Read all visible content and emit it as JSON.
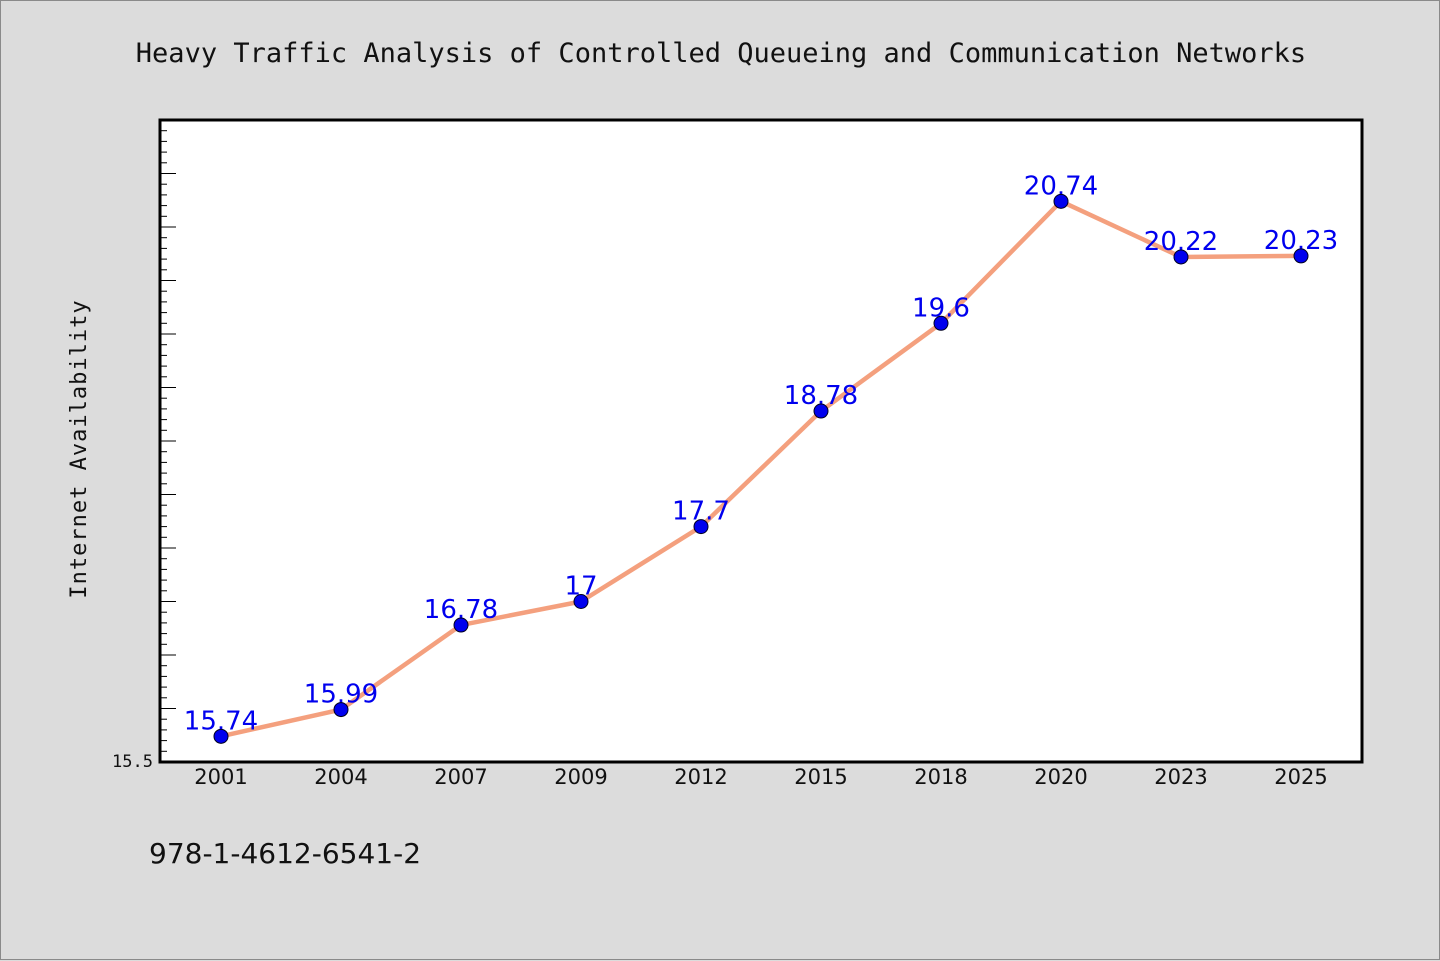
{
  "chart_data": {
    "type": "line",
    "title": "Heavy Traffic Analysis of Controlled Queueing and Communication Networks",
    "xlabel": "",
    "ylabel": "Internet Availability",
    "categories": [
      "2001",
      "2004",
      "2007",
      "2009",
      "2012",
      "2015",
      "2018",
      "2020",
      "2023",
      "2025"
    ],
    "series": [
      {
        "name": "",
        "values": [
          15.74,
          15.99,
          16.78,
          17,
          17.7,
          18.78,
          19.6,
          20.74,
          20.22,
          20.23
        ],
        "labels": [
          "15.74",
          "15.99",
          "16.78",
          "17",
          "17.7",
          "18.78",
          "19.6",
          "20.74",
          "20.22",
          "20.23"
        ]
      }
    ],
    "ylim": [
      15.5,
      21.5
    ],
    "yticks_labeled": [
      "15.5"
    ],
    "grid": false,
    "legend": "none",
    "colors": {
      "line": "#f4a07e",
      "marker": "#0000ee",
      "label": "#0000ee",
      "plot_background": "#ffffff",
      "figure_background": "#dcdcdc"
    }
  },
  "footer": {
    "isbn": "978-1-4612-6541-2"
  }
}
